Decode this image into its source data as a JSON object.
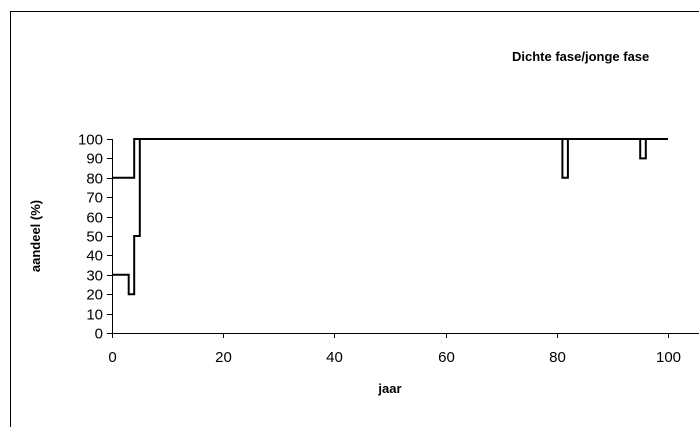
{
  "chart_data": {
    "type": "line",
    "title": "Dichte fase/jonge fase",
    "xlabel": "jaar",
    "ylabel": "aandeel (%)",
    "xlim": [
      0,
      100
    ],
    "ylim": [
      0,
      100
    ],
    "xticks": [
      "0",
      "20",
      "40",
      "60",
      "80",
      "100"
    ],
    "yticks": [
      "0",
      "10",
      "20",
      "30",
      "40",
      "50",
      "60",
      "70",
      "80",
      "90",
      "100"
    ],
    "grid": false,
    "legend": "none",
    "line_color": "#000000",
    "series": [
      {
        "values": [
          [
            0,
            80
          ],
          [
            4,
            80
          ],
          [
            4,
            100
          ],
          [
            100,
            100
          ]
        ]
      },
      {
        "values": [
          [
            0,
            30
          ],
          [
            3,
            30
          ],
          [
            3,
            20
          ],
          [
            4,
            20
          ],
          [
            4,
            50
          ],
          [
            5,
            50
          ],
          [
            5,
            100
          ],
          [
            81,
            100
          ],
          [
            81,
            80
          ],
          [
            82,
            80
          ],
          [
            82,
            100
          ],
          [
            95,
            100
          ],
          [
            95,
            90
          ],
          [
            96,
            90
          ],
          [
            96,
            100
          ],
          [
            100,
            100
          ]
        ]
      }
    ]
  }
}
